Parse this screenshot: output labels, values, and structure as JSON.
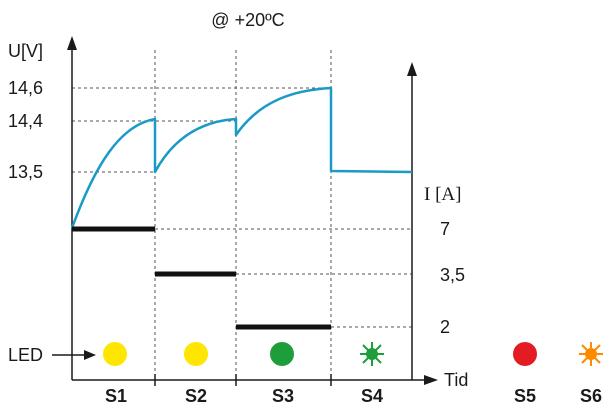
{
  "header": {
    "temperature": "@ +20ºC"
  },
  "voltage_axis": {
    "label": "U[V]",
    "ticks": [
      "14,6",
      "14,4",
      "13,5"
    ]
  },
  "current_axis": {
    "label": "I [A]",
    "ticks": [
      "7",
      "3,5",
      "2"
    ]
  },
  "time_axis": {
    "label": "Tid"
  },
  "led": {
    "label": "LED",
    "colors": {
      "yellow": "#ffe600",
      "green": "#1e9e3a",
      "red": "#e31b23",
      "orange": "#ff8a00"
    },
    "icons": [
      "yellow-dot-icon",
      "yellow-dot-icon",
      "green-dot-icon",
      "green-blink-icon",
      "red-dot-icon",
      "orange-blink-icon"
    ]
  },
  "stages": [
    "S1",
    "S2",
    "S3",
    "S4",
    "S5",
    "S6"
  ],
  "colors": {
    "voltage_curve": "#1a9bc7",
    "current_bars": "#111111"
  }
}
